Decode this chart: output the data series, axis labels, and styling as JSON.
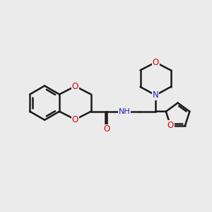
{
  "background_color": "#ebebeb",
  "bond_color": "#1a1a1a",
  "oxygen_color": "#e00000",
  "nitrogen_color": "#2020cc",
  "line_width": 1.8,
  "font_size": 8.5,
  "fig_size": [
    3.0,
    3.0
  ],
  "dpi": 100,
  "xlim": [
    0,
    10
  ],
  "ylim": [
    0,
    10
  ]
}
